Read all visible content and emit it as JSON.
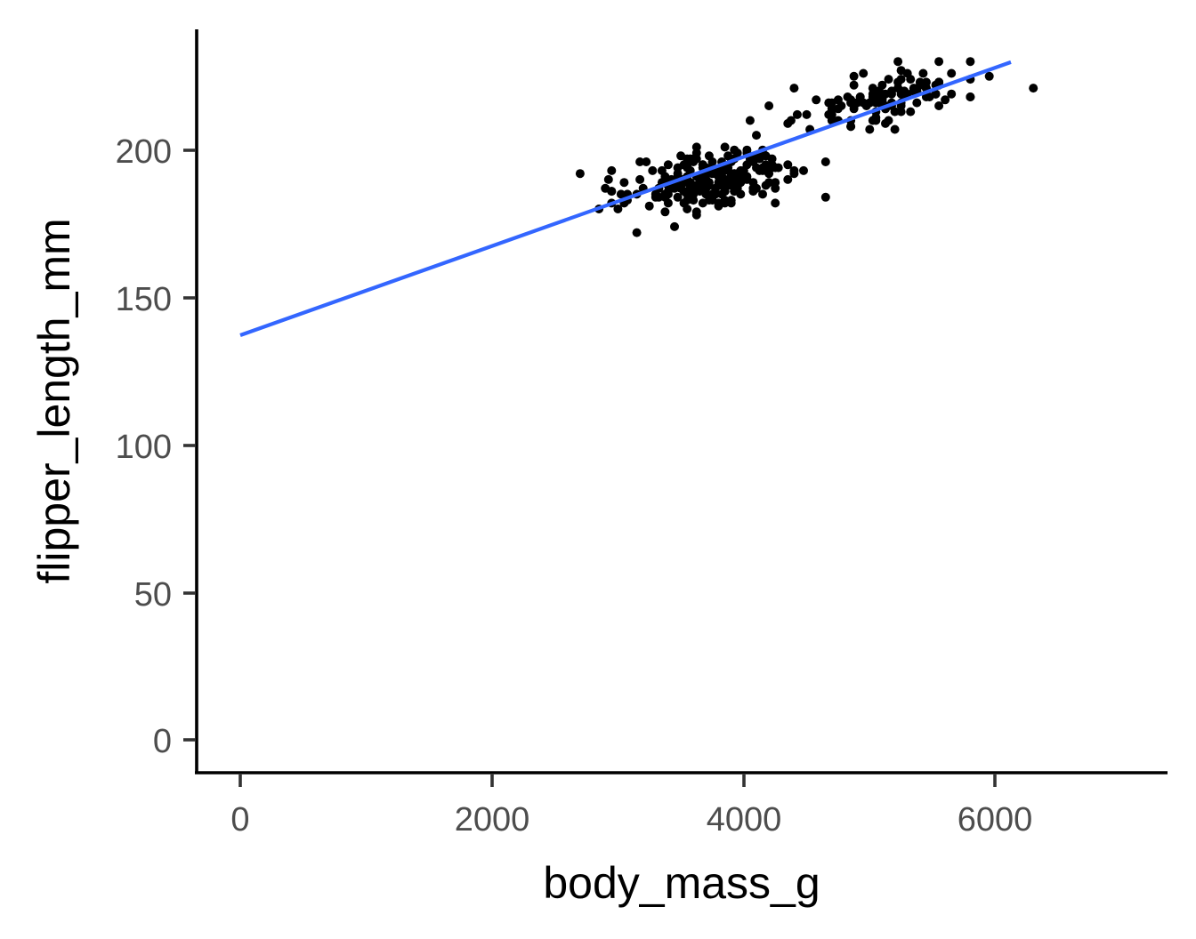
{
  "chart_data": {
    "type": "scatter",
    "title": "",
    "xlabel": "body_mass_g",
    "ylabel": "flipper_length_mm",
    "xlim": [
      0,
      7300
    ],
    "ylim": [
      0,
      235
    ],
    "x_ticks": [
      0,
      2000,
      4000,
      6000
    ],
    "x_tick_labels": [
      "0",
      "2000",
      "4000",
      "6000"
    ],
    "y_ticks": [
      0,
      50,
      100,
      150,
      200
    ],
    "y_tick_labels": [
      "0",
      "50",
      "100",
      "150",
      "200"
    ],
    "grid": false,
    "legend": null,
    "series": [
      {
        "name": "observations",
        "kind": "points",
        "color": "#000000",
        "approx_count": 342,
        "x_range": [
          2700,
          6300
        ],
        "y_range": [
          172,
          231
        ],
        "sample_points": [
          [
            2700,
            192
          ],
          [
            2850,
            180
          ],
          [
            2900,
            187
          ],
          [
            2950,
            193
          ],
          [
            3150,
            172
          ],
          [
            3300,
            185
          ],
          [
            3400,
            195
          ],
          [
            3450,
            174
          ],
          [
            3550,
            180
          ],
          [
            3600,
            186
          ],
          [
            3700,
            190
          ],
          [
            3800,
            181
          ],
          [
            3900,
            196
          ],
          [
            4050,
            210
          ],
          [
            4100,
            205
          ],
          [
            4200,
            215
          ],
          [
            4400,
            193
          ],
          [
            4650,
            184
          ],
          [
            4750,
            210
          ],
          [
            5000,
            216
          ],
          [
            5200,
            207
          ],
          [
            5400,
            222
          ],
          [
            5550,
            230
          ],
          [
            5800,
            230
          ],
          [
            5950,
            225
          ],
          [
            6300,
            221
          ]
        ]
      },
      {
        "name": "linear fit",
        "kind": "line",
        "color": "#3366FF",
        "x": [
          0,
          6122
        ],
        "y": [
          137.2,
          229.8
        ],
        "slope": 0.01513,
        "intercept": 137.2
      }
    ]
  },
  "axes": {
    "x_title": "body_mass_g",
    "y_title": "flipper_length_mm",
    "x_tick_labels": [
      "0",
      "2000",
      "4000",
      "6000"
    ],
    "y_tick_labels": [
      "0",
      "50",
      "100",
      "150",
      "200"
    ]
  },
  "colors": {
    "points": "#000000",
    "fit_line": "#3366FF",
    "axis": "#000000",
    "tick_text": "#4d4d4d"
  }
}
